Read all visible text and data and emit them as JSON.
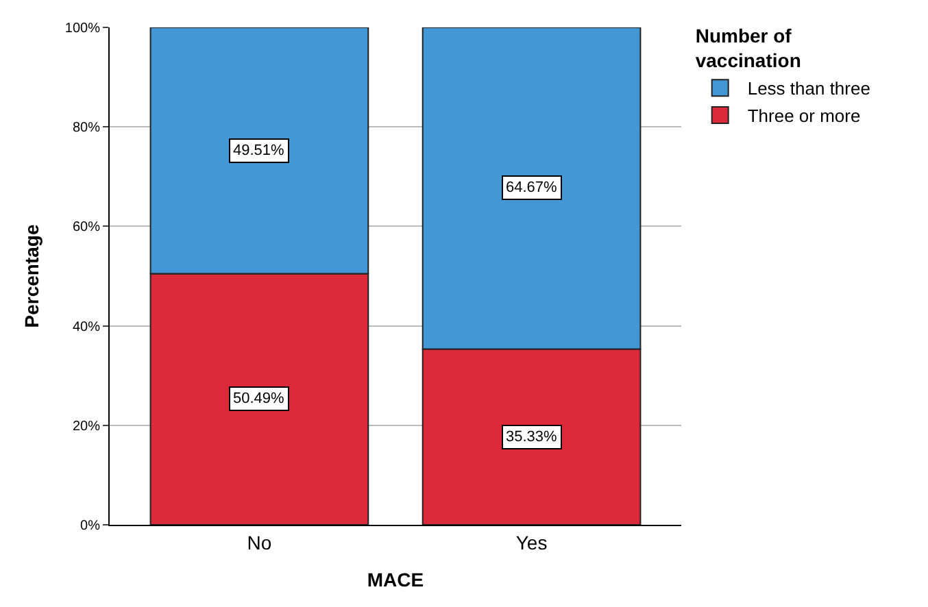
{
  "chart_data": {
    "type": "bar",
    "stacked": true,
    "xlabel": "MACE",
    "ylabel": "Percentage",
    "legend_title": "Number of vaccination",
    "categories": [
      "No",
      "Yes"
    ],
    "series": [
      {
        "name": "Three or more",
        "color": "#dc2a3a",
        "values": [
          50.49,
          35.33
        ],
        "value_labels": [
          "50.49%",
          "35.33%"
        ]
      },
      {
        "name": "Less than three",
        "color": "#4397d4",
        "values": [
          49.51,
          64.67
        ],
        "value_labels": [
          "49.51%",
          "64.67%"
        ]
      }
    ],
    "ylim": [
      0,
      100
    ],
    "yticks": [
      {
        "value": 0,
        "label": "0%"
      },
      {
        "value": 20,
        "label": "20%"
      },
      {
        "value": 40,
        "label": "40%"
      },
      {
        "value": 60,
        "label": "60%"
      },
      {
        "value": 80,
        "label": "80%"
      },
      {
        "value": 100,
        "label": "100%"
      }
    ],
    "grid": "y",
    "legend": "top right"
  }
}
